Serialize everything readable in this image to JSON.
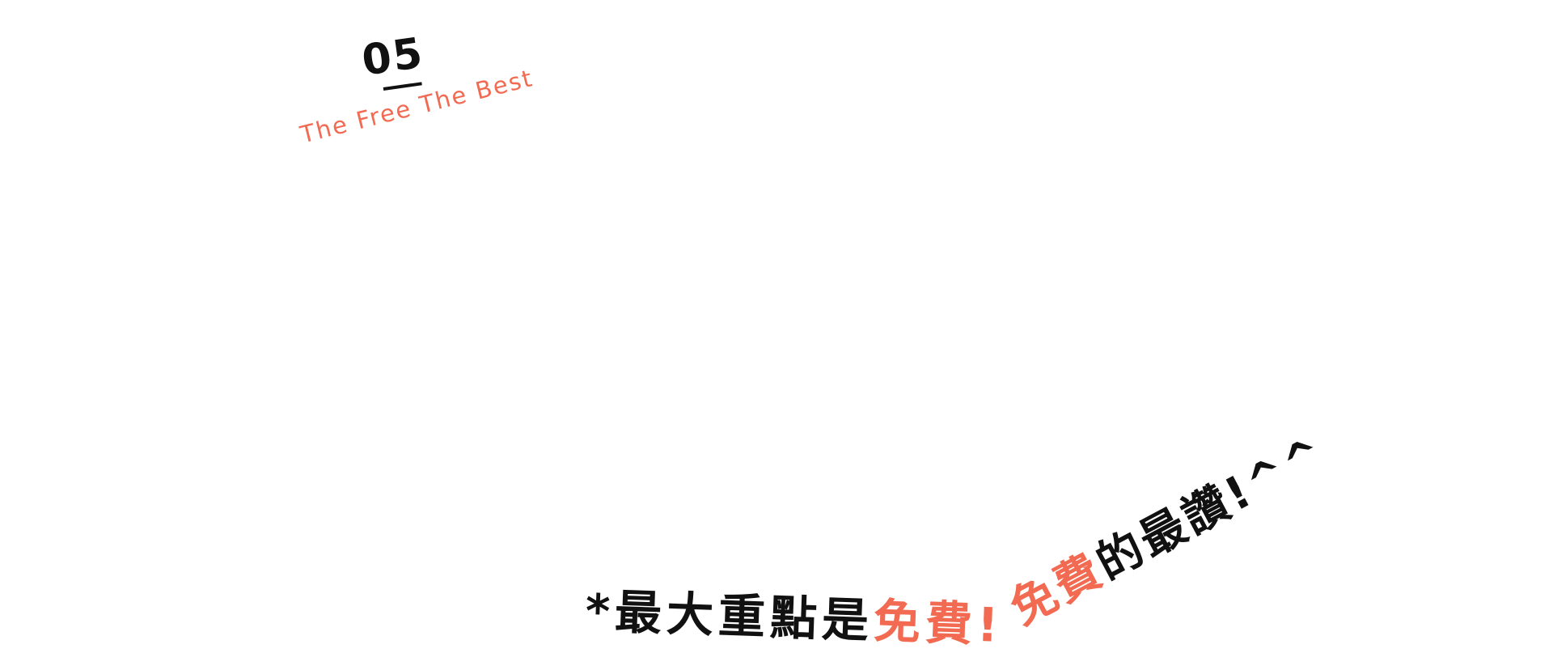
{
  "section": {
    "number": "05",
    "subtitle": "The Free The Best"
  },
  "main_line": {
    "prefix": "*最大重點是",
    "accent": "免費!"
  },
  "diagonal_line": {
    "accent": "免費",
    "suffix": "的最讚!^^"
  },
  "colors": {
    "accent": "#f26a51",
    "text": "#111111",
    "background": "#ffffff"
  }
}
